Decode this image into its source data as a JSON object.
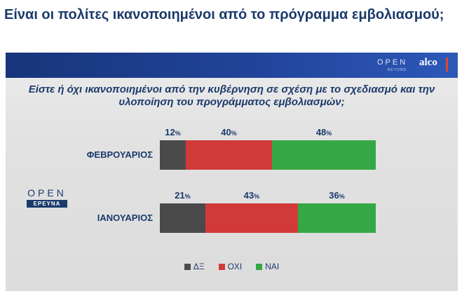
{
  "headline": "Είναι οι πολίτες ικανοποιημένοι από το πρόγραμμα εμβολιασμού;",
  "branding": {
    "open_text": "OPEN",
    "beyond_text": "BEYOND",
    "alco_text": "alco",
    "side_open_text": "OPEN",
    "side_ereuna_text": "ΕΡΕΥΝΑ"
  },
  "colors": {
    "header_blue": "#21449a",
    "text_navy": "#1b3a6b",
    "de": "#4a4a4a",
    "oxi": "#d23a3a",
    "nai": "#35a845"
  },
  "chart_data": {
    "type": "bar",
    "orientation": "horizontal",
    "stacked": true,
    "title": "Είστε ή όχι ικανοποιημένοι από την κυβέρνηση σε σχέση με το σχεδιασμό και την υλοποίηση του προγράμματος εμβολιασμών;",
    "categories": [
      "ΦΕΒΡΟΥΑΡΙΟΣ",
      "ΙΑΝΟΥΑΡΙΟΣ"
    ],
    "series": [
      {
        "name": "ΔΞ",
        "values": [
          12,
          21
        ],
        "color": "#4a4a4a"
      },
      {
        "name": "ΟΧΙ",
        "values": [
          40,
          43
        ],
        "color": "#d23a3a"
      },
      {
        "name": "ΝΑΙ",
        "values": [
          48,
          36
        ],
        "color": "#35a845"
      }
    ],
    "unit": "%",
    "xlim": [
      0,
      100
    ],
    "grid": false,
    "legend_position": "bottom"
  }
}
